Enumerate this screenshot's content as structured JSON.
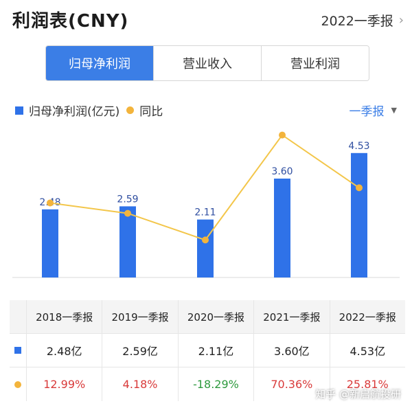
{
  "header": {
    "title": "利润表(CNY)",
    "period": "2022一季报"
  },
  "tabs": [
    {
      "label": "归母净利润",
      "active": true
    },
    {
      "label": "营业收入",
      "active": false
    },
    {
      "label": "营业利润",
      "active": false
    }
  ],
  "legend": {
    "bar_label": "归母净利润(亿元)",
    "line_label": "同比"
  },
  "frequency": {
    "label": "一季报"
  },
  "colors": {
    "bar": "#2f72e8",
    "line": "#f3b43c",
    "accent": "#3b7ee6",
    "positive": "#d93a3a",
    "negative": "#2e9a3e"
  },
  "chart_data": {
    "type": "bar",
    "categories": [
      "2018一季报",
      "2019一季报",
      "2020一季报",
      "2021一季报",
      "2022一季报"
    ],
    "series": [
      {
        "name": "归母净利润(亿元)",
        "type": "bar",
        "values": [
          2.48,
          2.59,
          2.11,
          3.6,
          4.53
        ],
        "labels": [
          "2.48",
          "2.59",
          "2.11",
          "3.60",
          "4.53"
        ]
      },
      {
        "name": "同比",
        "type": "line",
        "values": [
          12.99,
          4.18,
          -18.29,
          70.36,
          25.81
        ]
      }
    ],
    "bar_ylim": [
      0,
      5
    ],
    "line_ylim": [
      -50,
      80
    ]
  },
  "table": {
    "rows": [
      {
        "values": [
          "2.48亿",
          "2.59亿",
          "2.11亿",
          "3.60亿",
          "4.53亿"
        ]
      },
      {
        "values": [
          "12.99%",
          "4.18%",
          "-18.29%",
          "70.36%",
          "25.81%"
        ]
      }
    ]
  },
  "watermark": {
    "text": "知乎 @新启航投研"
  }
}
